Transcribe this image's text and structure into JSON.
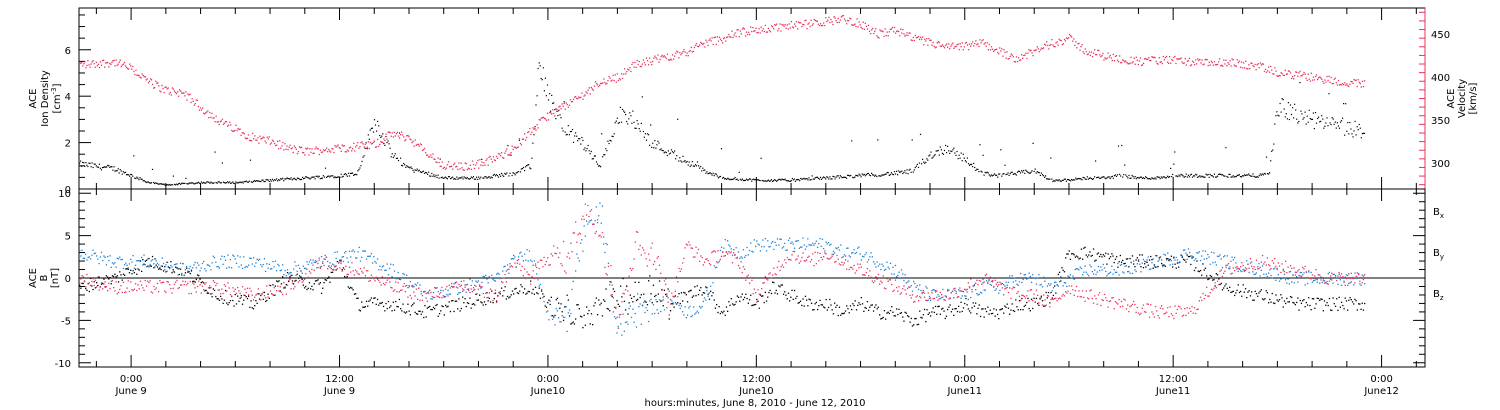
{
  "chart_data": [
    {
      "type": "scatter",
      "panel": "top",
      "ylabel_left": [
        "ACE",
        "Ion Density",
        "[cm",
        "-3",
        "]"
      ],
      "ylabel_right": [
        "ACE",
        "Velocity",
        "[km/s]"
      ],
      "y_left_range": [
        0,
        7.8
      ],
      "y_left_ticks": [
        0,
        2,
        4,
        6
      ],
      "y_right_range": [
        270,
        480
      ],
      "y_right_ticks": [
        300,
        350,
        400,
        450
      ],
      "colors": {
        "density": "#000000",
        "velocity": "#e8335c",
        "axis": "#000000"
      },
      "series": [
        {
          "name": "Ion Density",
          "axis": "left",
          "x_hours": [
            -3,
            -1,
            0,
            1,
            2,
            4,
            6,
            8,
            10,
            12,
            13,
            14,
            15,
            16,
            17,
            18,
            19,
            20,
            21,
            22,
            23,
            23.5,
            24,
            25,
            26,
            27,
            28,
            29,
            30,
            31,
            32,
            33,
            34,
            36,
            38,
            40,
            42,
            44,
            45,
            46,
            47,
            48,
            49,
            50,
            51,
            52,
            53,
            54,
            55,
            56,
            57,
            58,
            59,
            60,
            61,
            62,
            63,
            64,
            65,
            65.5,
            66,
            67,
            68,
            69,
            70,
            71
          ],
          "values": [
            1.1,
            0.9,
            0.6,
            0.3,
            0.2,
            0.3,
            0.3,
            0.4,
            0.5,
            0.6,
            0.7,
            3.0,
            1.5,
            0.9,
            0.7,
            0.5,
            0.5,
            0.5,
            0.6,
            0.7,
            1.0,
            5.6,
            4.0,
            2.5,
            2.0,
            1.0,
            3.2,
            3.0,
            2.0,
            1.6,
            1.2,
            0.8,
            0.5,
            0.4,
            0.4,
            0.5,
            0.6,
            0.7,
            0.8,
            1.5,
            1.8,
            1.3,
            0.7,
            0.6,
            0.7,
            0.8,
            0.4,
            0.4,
            0.5,
            0.5,
            0.6,
            0.5,
            0.5,
            0.6,
            0.6,
            0.6,
            0.6,
            0.6,
            0.6,
            0.7,
            3.6,
            3.2,
            3.0,
            2.8,
            2.6,
            2.5
          ]
        },
        {
          "name": "Velocity",
          "axis": "right",
          "x_hours": [
            -3,
            -2,
            -1,
            0,
            1,
            2,
            3,
            4,
            5,
            6,
            7,
            8,
            9,
            10,
            11,
            12,
            13,
            14,
            15,
            16,
            17,
            18,
            19,
            20,
            21,
            22,
            23,
            24,
            25,
            26,
            27,
            28,
            29,
            30,
            31,
            32,
            33,
            34,
            35,
            36,
            37,
            38,
            39,
            40,
            41,
            42,
            43,
            44,
            45,
            46,
            47,
            48,
            49,
            50,
            51,
            52,
            53,
            54,
            55,
            56,
            57,
            58,
            59,
            60,
            61,
            62,
            63,
            64,
            65,
            66,
            67,
            68,
            69,
            70,
            71
          ],
          "values": [
            415,
            416,
            418,
            410,
            395,
            385,
            382,
            365,
            350,
            340,
            330,
            326,
            318,
            314,
            316,
            318,
            320,
            322,
            335,
            330,
            312,
            298,
            296,
            300,
            306,
            318,
            338,
            356,
            368,
            380,
            395,
            400,
            415,
            420,
            425,
            430,
            440,
            445,
            452,
            455,
            458,
            460,
            462,
            465,
            468,
            462,
            450,
            455,
            445,
            440,
            435,
            436,
            440,
            430,
            422,
            430,
            440,
            445,
            430,
            425,
            422,
            418,
            420,
            420,
            418,
            416,
            418,
            415,
            412,
            405,
            403,
            400,
            397,
            394,
            392
          ]
        }
      ]
    },
    {
      "type": "scatter",
      "panel": "bottom",
      "ylabel_left": [
        "ACE",
        "B",
        "[nT]"
      ],
      "y_range": [
        -10.5,
        10.5
      ],
      "y_ticks": [
        -10,
        -5,
        0,
        5,
        10
      ],
      "legend": [
        {
          "name": "B",
          "sub": "x",
          "color": "#000000"
        },
        {
          "name": "B",
          "sub": "y",
          "color": "#1f82d6"
        },
        {
          "name": "B",
          "sub": "z",
          "color": "#e8335c"
        }
      ],
      "series": [
        {
          "name": "Bx",
          "x_hours": [
            -3,
            -1,
            1,
            3,
            5,
            7,
            9,
            11,
            12,
            13,
            15,
            17,
            19,
            21,
            23,
            24,
            25,
            26,
            27,
            28,
            29,
            30,
            31,
            32,
            33,
            34,
            35,
            36,
            37,
            38,
            39,
            40,
            41,
            42,
            43,
            44,
            45,
            46,
            47,
            48,
            49,
            50,
            51,
            52,
            53,
            54,
            55,
            57,
            59,
            61,
            63,
            65,
            67,
            69,
            71
          ],
          "values": [
            -1,
            0,
            2,
            1,
            -2,
            -3,
            0,
            -1,
            2,
            -3,
            -3,
            -4,
            -3,
            -2,
            -1,
            -3,
            -4,
            -5,
            -3,
            -2,
            -2,
            -1,
            -3,
            -2,
            -1,
            -4,
            -2,
            -3,
            -1,
            -2,
            -3,
            -3,
            -4,
            -3,
            -4,
            -4,
            -5,
            -4,
            -4,
            -3,
            -4,
            -4,
            -3,
            -3,
            -2,
            3,
            3,
            2,
            2,
            2,
            -1,
            -2,
            -3,
            -3,
            -3
          ]
        },
        {
          "name": "By",
          "x_hours": [
            -3,
            -1,
            1,
            3,
            5,
            7,
            9,
            11,
            13,
            15,
            17,
            19,
            21,
            22,
            23,
            24,
            25,
            26,
            27,
            28,
            29,
            30,
            31,
            32,
            33,
            34,
            35,
            36,
            37,
            38,
            39,
            40,
            41,
            42,
            43,
            44,
            45,
            46,
            47,
            48,
            49,
            50,
            51,
            52,
            53,
            54,
            55,
            57,
            59,
            61,
            63,
            65,
            67,
            69,
            71
          ],
          "values": [
            3,
            2,
            2,
            1,
            2,
            2,
            1,
            2,
            3,
            1,
            -2,
            -1,
            0,
            2,
            3,
            -4,
            -5,
            5,
            8,
            -6,
            -4,
            -3,
            -2,
            -4,
            -3,
            4,
            3,
            4,
            4,
            4,
            4,
            4,
            3,
            3,
            2,
            1,
            -1,
            -2,
            -2,
            -2,
            -1,
            -1,
            0,
            0,
            -1,
            0,
            1,
            1,
            2,
            3,
            2,
            1,
            0,
            0,
            0
          ]
        },
        {
          "name": "Bz",
          "x_hours": [
            -3,
            -1,
            1,
            3,
            5,
            7,
            9,
            11,
            13,
            15,
            17,
            19,
            21,
            22,
            23,
            24,
            25,
            26,
            27,
            28,
            29,
            30,
            31,
            32,
            33,
            34,
            35,
            36,
            37,
            38,
            39,
            40,
            41,
            42,
            43,
            44,
            45,
            46,
            47,
            48,
            49,
            50,
            51,
            52,
            53,
            54,
            55,
            57,
            59,
            61,
            63,
            65,
            67,
            69,
            71
          ],
          "values": [
            0,
            -1,
            -1,
            -1,
            -1,
            -2,
            -1,
            2,
            1,
            -1,
            -2,
            -1,
            -2,
            2,
            0,
            3,
            2,
            8,
            6,
            -5,
            4,
            3,
            -3,
            4,
            2,
            3,
            2,
            -2,
            1,
            3,
            2,
            3,
            2,
            1,
            0,
            -1,
            -2,
            -2,
            -2,
            -1,
            0,
            -1,
            -2,
            -2,
            -3,
            -1,
            -2,
            -3,
            -4,
            -4,
            1,
            2,
            1,
            0,
            0
          ]
        }
      ]
    }
  ],
  "x_axis": {
    "tick_hours": [
      0,
      12,
      24,
      36,
      48,
      60,
      72
    ],
    "tick_labels": [
      [
        "0:00",
        "June 9"
      ],
      [
        "12:00",
        "June 9"
      ],
      [
        "0:00",
        "June10"
      ],
      [
        "12:00",
        "June10"
      ],
      [
        "0:00",
        "June11"
      ],
      [
        "12:00",
        "June11"
      ],
      [
        "0:00",
        "June12"
      ]
    ],
    "title": "hours:minutes, June  8, 2010 - June 12, 2010",
    "range_hours": [
      -3,
      74.5
    ]
  }
}
